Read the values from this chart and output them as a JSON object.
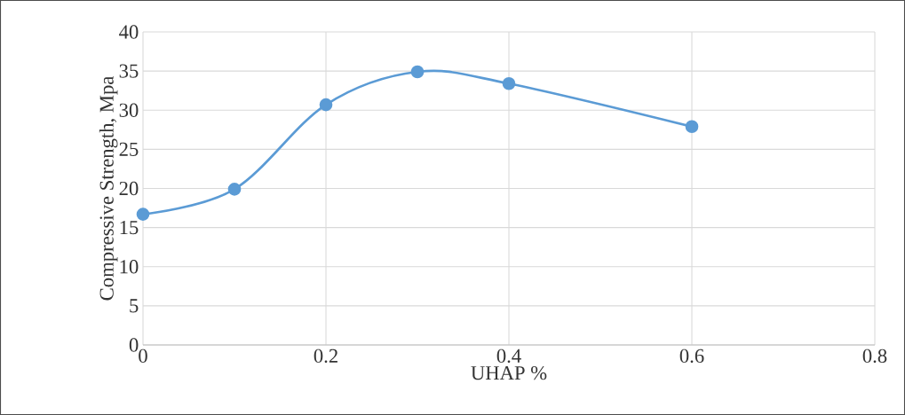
{
  "chart_data": {
    "type": "line",
    "xlabel": "UHAP %",
    "ylabel": "Compressive Strength, Mpa",
    "x": [
      0,
      0.1,
      0.2,
      0.3,
      0.4,
      0.6
    ],
    "series": [
      {
        "color": "#5b9bd5",
        "values": [
          16.7,
          19.9,
          30.7,
          34.9,
          33.4,
          27.9
        ]
      }
    ],
    "xlim": [
      0,
      0.8
    ],
    "xticks": [
      0,
      0.2,
      0.4,
      0.6,
      0.8
    ],
    "ylim": [
      0,
      40
    ],
    "yticks": [
      0,
      5,
      10,
      15,
      20,
      25,
      30,
      35,
      40
    ],
    "grid": true,
    "marker": "circle",
    "line_style": "solid"
  }
}
